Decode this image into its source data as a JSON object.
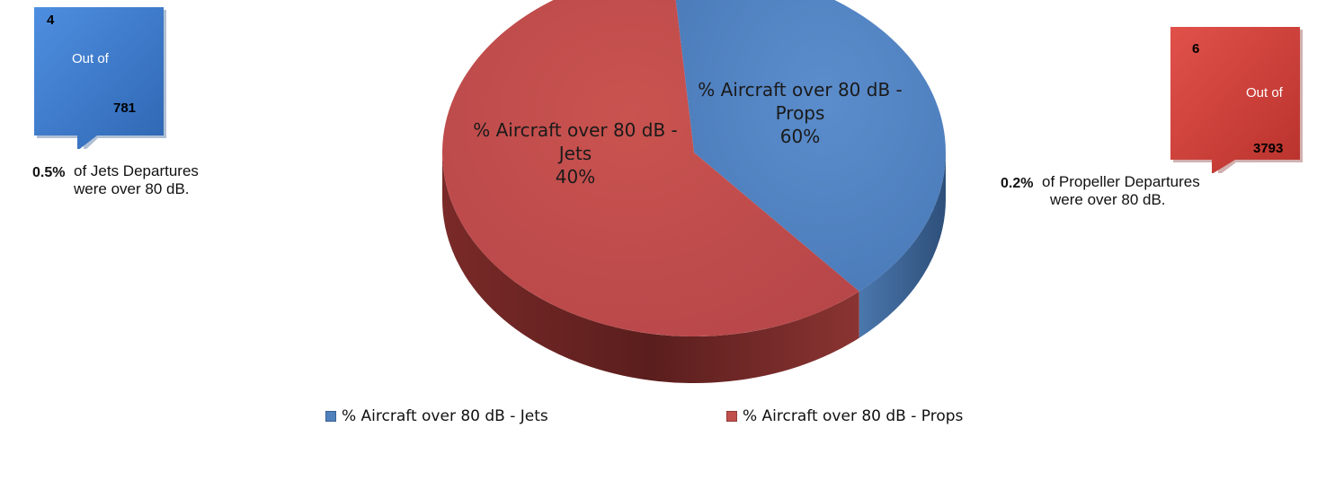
{
  "chart_data": {
    "type": "pie",
    "style": "3d",
    "categories": [
      "% Aircraft over 80 dB - Jets",
      "% Aircraft over 80 dB - Props"
    ],
    "values": [
      40,
      60
    ],
    "data_labels": [
      {
        "name": "% Aircraft over 80 dB - Jets",
        "value": "40%"
      },
      {
        "name": "% Aircraft over 80 dB - Props",
        "value": "60%"
      }
    ],
    "colors": [
      "#4f81bd",
      "#c0504d"
    ],
    "legend": {
      "placement": "bottom",
      "entries": [
        "% Aircraft over 80 dB - Jets",
        "% Aircraft over 80 dB - Props"
      ]
    }
  },
  "callouts": {
    "jets": {
      "count": "4",
      "out_of": "Out of",
      "total": "781",
      "color": "#3f78c8",
      "percent": "0.5%",
      "line1": "of Jets Departures",
      "line2": "were over 80 dB."
    },
    "props": {
      "count": "6",
      "out_of": "Out of",
      "total": "3793",
      "color": "#d0433b",
      "percent": "0.2%",
      "line1": "of  Propeller Departures",
      "line2": "were over 80 dB."
    }
  }
}
